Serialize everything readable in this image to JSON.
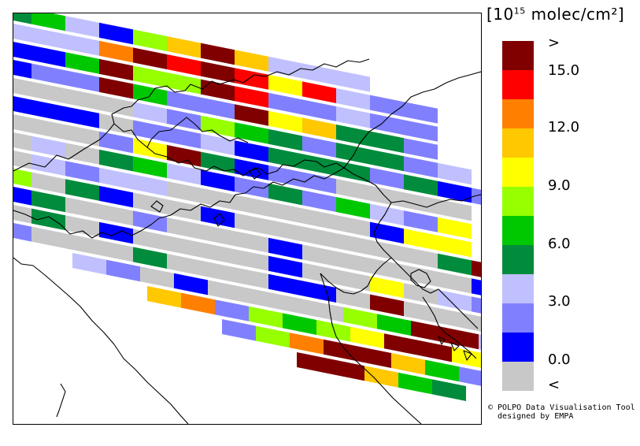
{
  "unit": {
    "prefix": "[10",
    "exponent": "15",
    "suffix": " molec/cm²]"
  },
  "colorbar": {
    "colors": [
      "#c8c8c8",
      "#0000ff",
      "#8080ff",
      "#c0c0ff",
      "#008c3c",
      "#00c800",
      "#96ff00",
      "#ffff00",
      "#ffc800",
      "#ff8000",
      "#ff0000",
      "#800000"
    ],
    "labels": [
      ">",
      "15.0",
      "12.0",
      "9.0",
      "6.0",
      "3.0",
      "0.0",
      "<"
    ]
  },
  "credit": {
    "line1": "© POLPO Data Visualisation Tool",
    "line2": "  designed by EMPA"
  },
  "swaths": [
    [
      4,
      5,
      3,
      1,
      6,
      8,
      11,
      8,
      3,
      3,
      3
    ],
    [
      3,
      3,
      3,
      9,
      11,
      10,
      11,
      10,
      7,
      10,
      3,
      2,
      2
    ],
    [
      1,
      1,
      5,
      11,
      6,
      6,
      11,
      10,
      2,
      2,
      3,
      2,
      2
    ],
    [
      1,
      2,
      2,
      11,
      5,
      2,
      2,
      11,
      7,
      8,
      4,
      4,
      2
    ],
    [
      0,
      0,
      0,
      0,
      3,
      2,
      6,
      5,
      4,
      2,
      4,
      4,
      2,
      3
    ],
    [
      1,
      1,
      1,
      0,
      2,
      2,
      3,
      1,
      4,
      4,
      4,
      2,
      4,
      1,
      2
    ],
    [
      0,
      0,
      0,
      2,
      7,
      11,
      4,
      1,
      2,
      2,
      0,
      0,
      0,
      0
    ],
    [
      0,
      3,
      0,
      4,
      5,
      3,
      1,
      2,
      4,
      2,
      5,
      3,
      2,
      7
    ],
    [
      0,
      3,
      2,
      3,
      3,
      0,
      0,
      0,
      0,
      0,
      0,
      1,
      7,
      7
    ],
    [
      6,
      0,
      4,
      1,
      0,
      0,
      1,
      0,
      0,
      0,
      0,
      0,
      0,
      4,
      11
    ],
    [
      1,
      4,
      0,
      0,
      2,
      0,
      0,
      0,
      1,
      0,
      0,
      0,
      0,
      0,
      1,
      11
    ],
    [
      0,
      4,
      0,
      1,
      0,
      0,
      0,
      0,
      1,
      0,
      0,
      7,
      0,
      3,
      2,
      6
    ],
    [
      2,
      0,
      0,
      0,
      4,
      0,
      0,
      0,
      1,
      1,
      0,
      11,
      0,
      0,
      0,
      1
    ],
    [
      3,
      2,
      0,
      1,
      0,
      0,
      0,
      0,
      6,
      5,
      11,
      11,
      3,
      3,
      1
    ],
    [
      8,
      9,
      2,
      6,
      5,
      6,
      7,
      11,
      11,
      7,
      2,
      3
    ],
    [
      2,
      6,
      9,
      11,
      11,
      8,
      5,
      2
    ],
    [
      11,
      11,
      8,
      5,
      4
    ]
  ]
}
